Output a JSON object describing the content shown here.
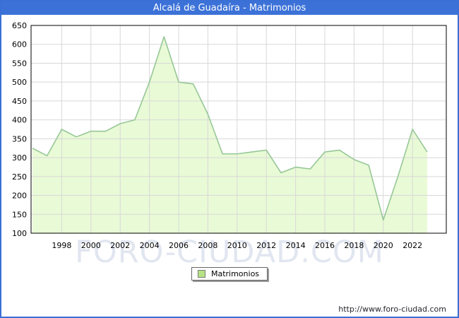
{
  "header": {
    "title": "Alcalá de Guadaíra - Matrimonios"
  },
  "legend": {
    "label": "Matrimonios",
    "swatch_color": "#b5e383"
  },
  "watermark": "FORO-CIUDAD.COM",
  "footer": {
    "url": "http://www.foro-ciudad.com"
  },
  "colors": {
    "frame_and_header": "#3c72d8",
    "title_text": "#ffffff",
    "line": "#96c796",
    "area_fill": "#e9fad6",
    "grid": "#d8d8d8",
    "plot_border": "#000000",
    "axis_text": "#000000",
    "watermark_text": "#c9d2e4"
  },
  "chart_data": {
    "type": "area",
    "title": "Alcalá de Guadaíra - Matrimonios",
    "xlabel": "",
    "ylabel": "",
    "x": [
      1996,
      1997,
      1998,
      1999,
      2000,
      2001,
      2002,
      2003,
      2004,
      2005,
      2006,
      2007,
      2008,
      2009,
      2010,
      2011,
      2012,
      2013,
      2014,
      2015,
      2016,
      2017,
      2018,
      2019,
      2020,
      2021,
      2022,
      2023
    ],
    "series": [
      {
        "name": "Matrimonios",
        "values": [
          325,
          305,
          375,
          355,
          370,
          370,
          390,
          400,
          500,
          620,
          500,
          495,
          415,
          310,
          310,
          315,
          320,
          260,
          275,
          270,
          315,
          320,
          295,
          280,
          135,
          250,
          375,
          315
        ]
      }
    ],
    "ylim": [
      100,
      650
    ],
    "yticks": [
      100,
      150,
      200,
      250,
      300,
      350,
      400,
      450,
      500,
      550,
      600,
      650
    ],
    "xticks": [
      1998,
      2000,
      2002,
      2004,
      2006,
      2008,
      2010,
      2012,
      2014,
      2016,
      2018,
      2020,
      2022
    ],
    "grid": true,
    "legend_position": "bottom"
  }
}
